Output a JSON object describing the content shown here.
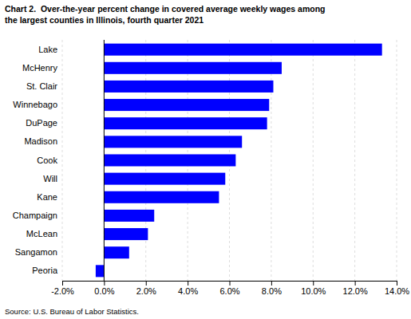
{
  "chart_data": {
    "type": "bar",
    "orientation": "horizontal",
    "title": [
      "Chart 2.  Over-the-year percent change in covered average weekly wages among",
      "the largest counties in Illinois, fourth quarter 2021"
    ],
    "categories": [
      "Lake",
      "McHenry",
      "St. Clair",
      "Winnebago",
      "DuPage",
      "Madison",
      "Cook",
      "Will",
      "Kane",
      "Champaign",
      "McLean",
      "Sangamon",
      "Peoria"
    ],
    "values": [
      13.3,
      8.5,
      8.1,
      7.9,
      7.8,
      6.6,
      6.3,
      5.8,
      5.5,
      2.4,
      2.1,
      1.2,
      -0.4
    ],
    "color": "#0000FF",
    "xlim": [
      -2.0,
      14.0
    ],
    "xticks": [
      {
        "value": -2.0,
        "label": "-2.0%"
      },
      {
        "value": 0.0,
        "label": "0.0%"
      },
      {
        "value": 2.0,
        "label": "2.0%"
      },
      {
        "value": 4.0,
        "label": "4.0%"
      },
      {
        "value": 6.0,
        "label": "6.0%"
      },
      {
        "value": 8.0,
        "label": "8.0%"
      },
      {
        "value": 10.0,
        "label": "10.0%"
      },
      {
        "value": 12.0,
        "label": "12.0%"
      },
      {
        "value": 14.0,
        "label": "14.0%"
      }
    ],
    "grid": true,
    "annotations": [
      "Source: U.S. Bureau of Labor Statistics."
    ]
  }
}
